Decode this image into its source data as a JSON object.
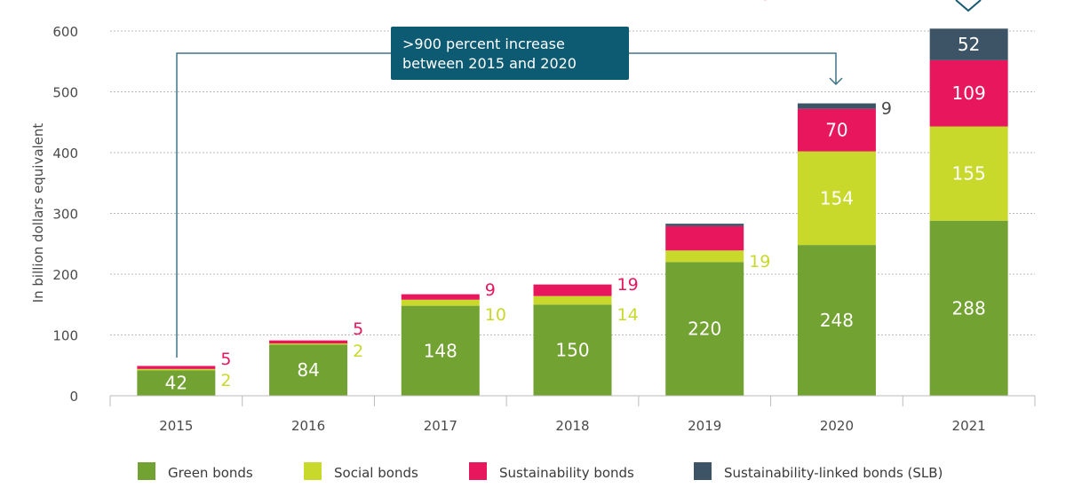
{
  "chart_data": {
    "type": "bar",
    "stacked": true,
    "title": "",
    "xlabel": "",
    "ylabel": "In billion dollars equivalent",
    "ylim": [
      0,
      600
    ],
    "yticks": [
      0,
      100,
      200,
      300,
      400,
      500,
      600
    ],
    "grid": true,
    "legend_position": "bottom",
    "categories": [
      "2015",
      "2016",
      "2017",
      "2018",
      "2019",
      "2020",
      "2021"
    ],
    "series": [
      {
        "name": "Green bonds",
        "color": "#72a232",
        "values": [
          42,
          84,
          148,
          150,
          220,
          248,
          288
        ],
        "labels": [
          "42",
          "84",
          "148",
          "150",
          "220",
          "248",
          "288"
        ]
      },
      {
        "name": "Social bonds",
        "color": "#c9d92c",
        "values": [
          2,
          2,
          10,
          14,
          19,
          154,
          155
        ],
        "labels": [
          "2",
          "2",
          "10",
          "14",
          "19",
          "154",
          "155"
        ]
      },
      {
        "name": "Sustainability bonds",
        "color": "#e8175d",
        "values": [
          5,
          5,
          9,
          19,
          40,
          70,
          109
        ],
        "labels": [
          "5",
          "5",
          "9",
          "19",
          "40",
          "70",
          "109"
        ]
      },
      {
        "name": "Sustainability-linked bonds (SLB)",
        "color": "#3d5466",
        "values": [
          0,
          0,
          0,
          0,
          4,
          9,
          52
        ],
        "labels": [
          null,
          null,
          null,
          null,
          null,
          "9",
          "52"
        ]
      }
    ],
    "annotation": {
      "text_line1": ">900 percent increase",
      "text_line2": "between 2015 and 2020",
      "from": "2015",
      "to": "2020",
      "box_color": "#0d5a73"
    }
  }
}
